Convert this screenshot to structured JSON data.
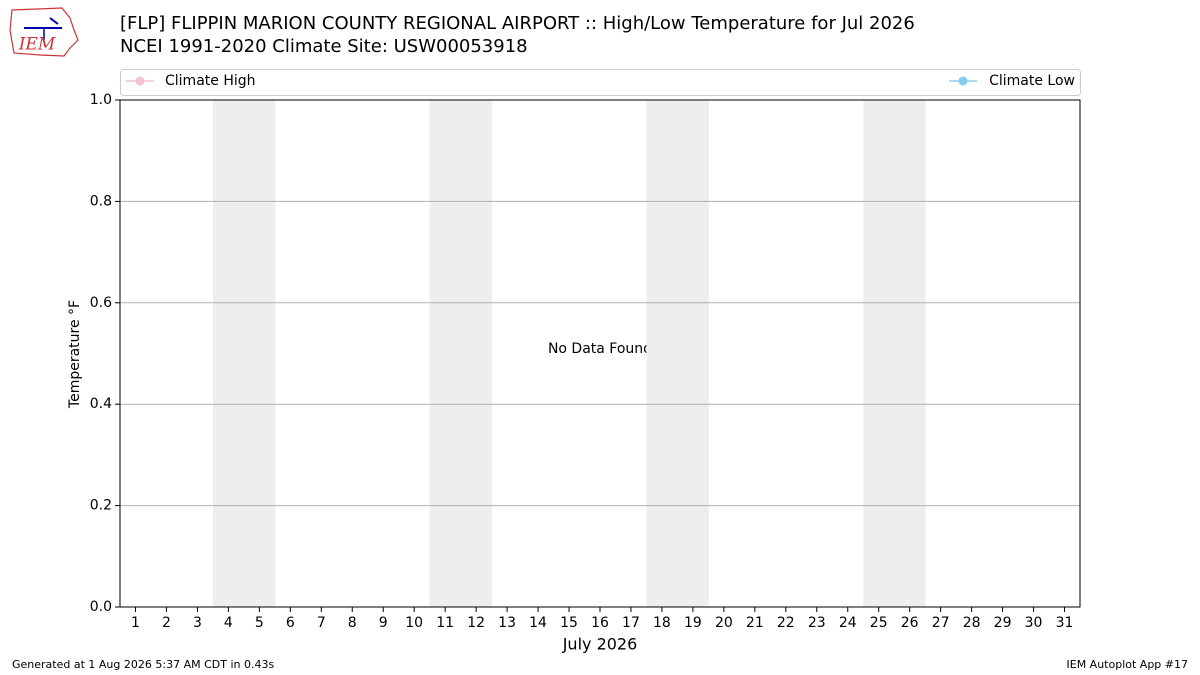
{
  "chart_data": {
    "type": "line",
    "logo": "IEM",
    "title": "[FLP] FLIPPIN MARION COUNTY REGIONAL AIRPORT :: High/Low Temperature for Jul 2026",
    "subtitle": "NCEI 1991-2020 Climate Site: USW00053918",
    "xlabel": "July 2026",
    "ylabel": "Temperature °F",
    "annotation": "No Data Found",
    "categories": [
      "1",
      "2",
      "3",
      "4",
      "5",
      "6",
      "7",
      "8",
      "9",
      "10",
      "11",
      "12",
      "13",
      "14",
      "15",
      "16",
      "17",
      "18",
      "19",
      "20",
      "21",
      "22",
      "23",
      "24",
      "25",
      "26",
      "27",
      "28",
      "29",
      "30",
      "31"
    ],
    "series": [
      {
        "name": "Climate High",
        "color": "#f4c2cc",
        "values": [
          null,
          null,
          null,
          null,
          null,
          null,
          null,
          null,
          null,
          null,
          null,
          null,
          null,
          null,
          null,
          null,
          null,
          null,
          null,
          null,
          null,
          null,
          null,
          null,
          null,
          null,
          null,
          null,
          null,
          null,
          null
        ]
      },
      {
        "name": "Climate Low",
        "color": "#87ceeb",
        "values": [
          null,
          null,
          null,
          null,
          null,
          null,
          null,
          null,
          null,
          null,
          null,
          null,
          null,
          null,
          null,
          null,
          null,
          null,
          null,
          null,
          null,
          null,
          null,
          null,
          null,
          null,
          null,
          null,
          null,
          null,
          null
        ]
      }
    ],
    "shaded_categories": [
      "4",
      "5",
      "11",
      "12",
      "18",
      "19",
      "25",
      "26"
    ],
    "shade_color": "#eeeeee",
    "ylim": [
      0,
      1
    ],
    "yticks": [
      {
        "value": 0,
        "label": "0.0"
      },
      {
        "value": 0.2,
        "label": "0.2"
      },
      {
        "value": 0.4,
        "label": "0.4"
      },
      {
        "value": 0.6,
        "label": "0.6"
      },
      {
        "value": 0.8,
        "label": "0.8"
      },
      {
        "value": 1,
        "label": "1.0"
      }
    ],
    "grid": true,
    "legend": "top",
    "footer_left": "Generated at 1 Aug 2026 5:37 AM CDT in 0.43s",
    "footer_right": "IEM Autoplot App #17"
  }
}
